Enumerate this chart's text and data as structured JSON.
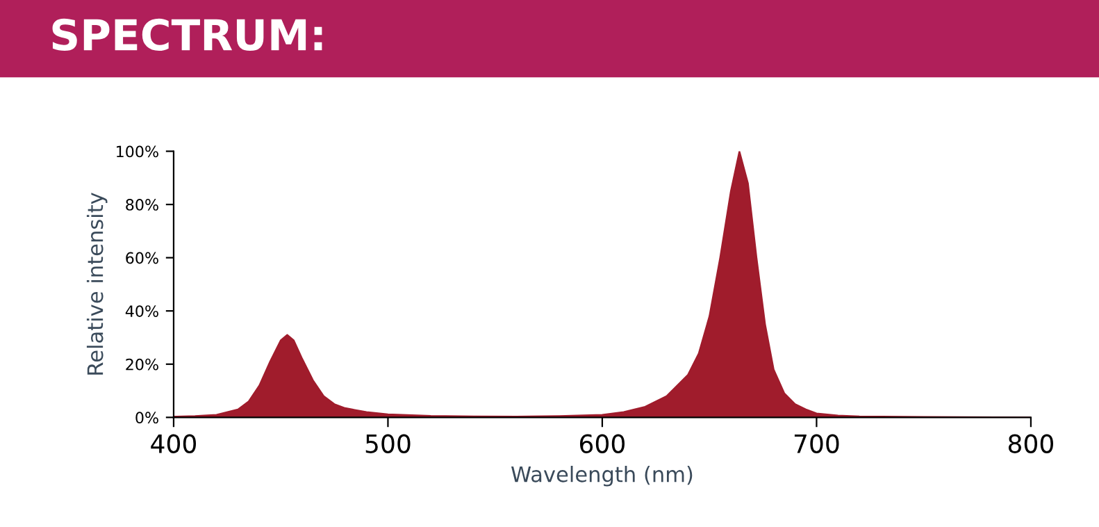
{
  "chart_data": {
    "type": "area",
    "title": "SPECTRUM:",
    "xlabel": "Wavelength (nm)",
    "ylabel": "Relative intensity",
    "x": [
      400,
      410,
      420,
      430,
      435,
      440,
      445,
      450,
      453,
      456,
      460,
      465,
      470,
      475,
      480,
      490,
      500,
      520,
      540,
      560,
      580,
      600,
      610,
      620,
      630,
      640,
      645,
      650,
      655,
      660,
      664,
      668,
      672,
      676,
      680,
      685,
      690,
      695,
      700,
      710,
      720,
      750,
      800
    ],
    "series": [
      {
        "color": "#a01c2c",
        "values": [
          0.3,
          0.5,
          1,
          3,
          6,
          12,
          21,
          29,
          31,
          29,
          22,
          14,
          8,
          5,
          3.5,
          2,
          1.2,
          0.6,
          0.4,
          0.3,
          0.5,
          1,
          2,
          4,
          8,
          16,
          24,
          38,
          60,
          85,
          100,
          88,
          60,
          35,
          18,
          9,
          5,
          3,
          1.5,
          0.7,
          0.4,
          0.2,
          0
        ]
      }
    ],
    "xlim": [
      400,
      800
    ],
    "xticks": [
      400,
      500,
      600,
      700,
      800
    ],
    "ylim": [
      0,
      100
    ],
    "yticks": [
      {
        "value": 0,
        "label": "0%"
      },
      {
        "value": 20,
        "label": "20%"
      },
      {
        "value": 40,
        "label": "40%"
      },
      {
        "value": 60,
        "label": "60%"
      },
      {
        "value": 80,
        "label": "80%"
      },
      {
        "value": 100,
        "label": "100%"
      }
    ],
    "grid": false,
    "legend": false
  }
}
